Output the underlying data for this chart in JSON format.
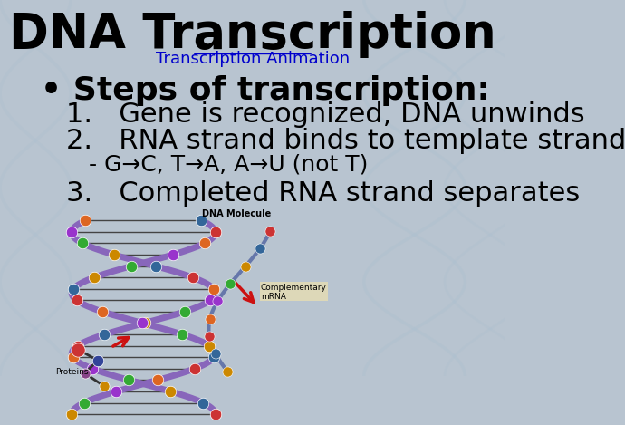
{
  "title": "DNA Transcription",
  "subtitle": "Transcription Animation",
  "bullet": "Steps of transcription:",
  "item1": "Gene is recognized, DNA unwinds",
  "item2": "RNA strand binds to template strand",
  "item3_sub": "- G→C, T→A, A→U (not T)",
  "item3": "Completed RNA strand separates",
  "bg_color": "#b8c4d0",
  "title_color": "#000000",
  "subtitle_color": "#0000cc",
  "text_color": "#000000",
  "title_fontsize": 38,
  "subtitle_fontsize": 13,
  "bullet_fontsize": 26,
  "item_fontsize": 22,
  "sub_item_fontsize": 18
}
